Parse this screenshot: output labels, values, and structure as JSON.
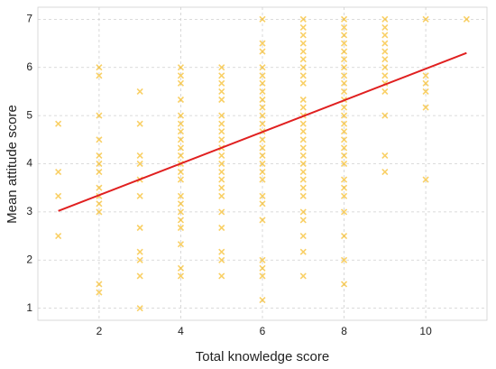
{
  "chart_data": {
    "type": "scatter",
    "xlabel": "Total knowledge score",
    "ylabel": "Mean attitude score",
    "xlim": [
      0.5,
      11.5
    ],
    "xticks": [
      2,
      4,
      6,
      8,
      10
    ],
    "ylim": [
      0.75,
      7.25
    ],
    "yticks": [
      1,
      2,
      3,
      4,
      5,
      6,
      7
    ],
    "grid": true,
    "series": [
      {
        "color": "#f5b000",
        "x": [
          1,
          1,
          1,
          1,
          2,
          2,
          2,
          2,
          2,
          2,
          2,
          2,
          2,
          2,
          2,
          2,
          2,
          3,
          3,
          3,
          3,
          3,
          3,
          3,
          3,
          3,
          3,
          3,
          4,
          4,
          4,
          4,
          4,
          4,
          4,
          4,
          4,
          4,
          4,
          4,
          4,
          4,
          4,
          4,
          4,
          4,
          4,
          4,
          4,
          5,
          5,
          5,
          5,
          5,
          5,
          5,
          5,
          5,
          5,
          5,
          5,
          5,
          5,
          5,
          5,
          5,
          5,
          5,
          5,
          5,
          6,
          6,
          6,
          6,
          6,
          6,
          6,
          6,
          6,
          6,
          6,
          6,
          6,
          6,
          6,
          6,
          6,
          6,
          6,
          6,
          6,
          6,
          6,
          6,
          6,
          7,
          7,
          7,
          7,
          7,
          7,
          7,
          7,
          7,
          7,
          7,
          7,
          7,
          7,
          7,
          7,
          7,
          7,
          7,
          7,
          7,
          7,
          7,
          7,
          7,
          7,
          7,
          8,
          8,
          8,
          8,
          8,
          8,
          8,
          8,
          8,
          8,
          8,
          8,
          8,
          8,
          8,
          8,
          8,
          8,
          8,
          8,
          8,
          8,
          8,
          8,
          8,
          8,
          9,
          9,
          9,
          9,
          9,
          9,
          9,
          9,
          9,
          9,
          9,
          9,
          9,
          10,
          10,
          10,
          10,
          10,
          10,
          11
        ],
        "values": [
          4.83,
          3.83,
          3.33,
          2.5,
          6,
          5.83,
          5,
          4.5,
          4.17,
          4,
          3.83,
          3.5,
          3.33,
          3.17,
          3,
          1.5,
          1.33,
          5.5,
          4.83,
          4.17,
          4,
          3.67,
          3.33,
          2.67,
          2.17,
          2,
          1.67,
          1,
          6,
          5.83,
          5.67,
          5.33,
          5,
          4.83,
          4.67,
          4.5,
          4.33,
          4.17,
          4,
          3.83,
          3.67,
          3.33,
          3.17,
          3,
          2.83,
          2.67,
          2.33,
          1.83,
          1.67,
          6,
          5.83,
          5.67,
          5.5,
          5.33,
          5,
          4.83,
          4.67,
          4.5,
          4.33,
          4.17,
          4,
          3.83,
          3.67,
          3.5,
          3.33,
          3,
          2.67,
          2.17,
          2,
          1.67,
          7,
          6.5,
          6.33,
          6,
          5.83,
          5.67,
          5.5,
          5.33,
          5.17,
          5,
          4.83,
          4.67,
          4.5,
          4.33,
          4.17,
          4,
          3.83,
          3.67,
          3.33,
          3.17,
          2.83,
          2,
          1.83,
          1.67,
          1.17,
          7,
          6.83,
          6.67,
          6.5,
          6.33,
          6.17,
          6,
          5.83,
          5.67,
          5.33,
          5.17,
          5,
          4.83,
          4.67,
          4.5,
          4.33,
          4.17,
          4,
          3.83,
          3.67,
          3.5,
          3.33,
          3,
          2.83,
          2.5,
          2.17,
          1.67,
          7,
          6.83,
          6.67,
          6.5,
          6.33,
          6.17,
          6,
          5.83,
          5.67,
          5.5,
          5.33,
          5.17,
          5,
          4.83,
          4.67,
          4.5,
          4.33,
          4.17,
          4,
          3.67,
          3.5,
          3.33,
          3,
          2.5,
          2,
          1.5,
          7,
          6.83,
          6.67,
          6.5,
          6.33,
          6.17,
          6,
          5.83,
          5.67,
          5.5,
          5,
          4.17,
          3.83,
          7,
          5.83,
          5.67,
          5.5,
          5.17,
          3.67,
          7
        ]
      }
    ],
    "fit": {
      "color": "#e02020",
      "x": [
        1,
        11
      ],
      "values": [
        3.02,
        6.3
      ]
    }
  }
}
